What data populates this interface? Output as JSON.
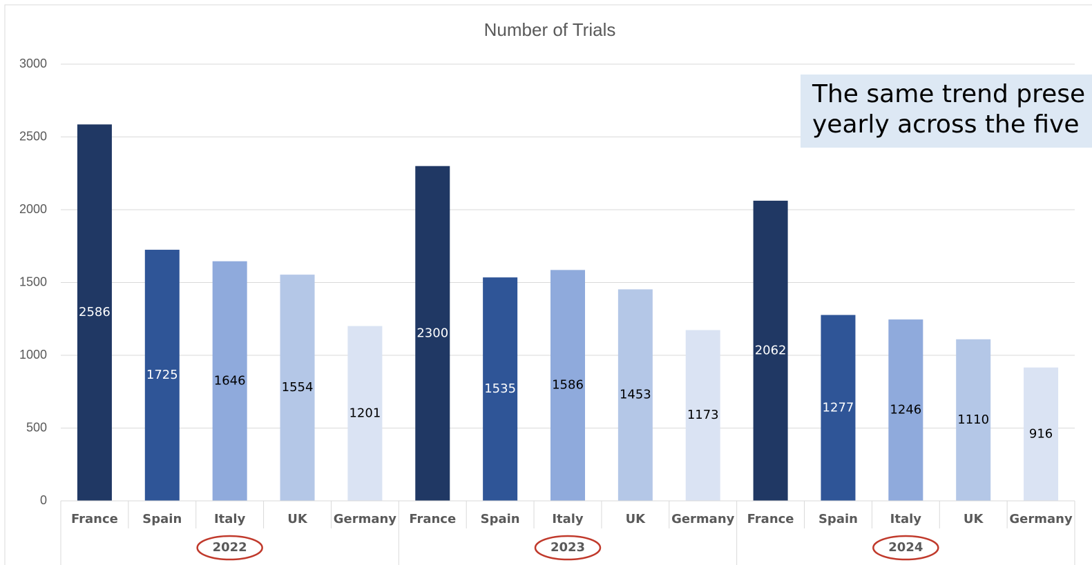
{
  "chart_data": {
    "type": "bar",
    "title": "Number of Trials",
    "categories": [
      "France",
      "Spain",
      "Italy",
      "UK",
      "Germany",
      "France",
      "Spain",
      "Italy",
      "UK",
      "Germany",
      "France",
      "Spain",
      "Italy",
      "UK",
      "Germany"
    ],
    "groups": [
      "2022",
      "2023",
      "2024"
    ],
    "values": [
      2586,
      1725,
      1646,
      1554,
      1201,
      2300,
      1535,
      1586,
      1453,
      1173,
      2062,
      1277,
      1246,
      1110,
      916
    ],
    "colors": [
      "#203864",
      "#2f5597",
      "#8faadc",
      "#b4c7e7",
      "#dae3f3",
      "#203864",
      "#2f5597",
      "#8faadc",
      "#b4c7e7",
      "#dae3f3",
      "#203864",
      "#2f5597",
      "#8faadc",
      "#b4c7e7",
      "#dae3f3"
    ],
    "label_colors": [
      "#ffffff",
      "#ffffff",
      "#000000",
      "#000000",
      "#000000",
      "#ffffff",
      "#ffffff",
      "#000000",
      "#000000",
      "#000000",
      "#ffffff",
      "#ffffff",
      "#000000",
      "#000000",
      "#000000"
    ],
    "ylim": [
      0,
      3000
    ],
    "yticks": [
      0,
      500,
      1000,
      1500,
      2000,
      2500,
      3000
    ],
    "grid": true,
    "annotation": [
      "The same trend prese",
      "yearly across the five"
    ]
  }
}
